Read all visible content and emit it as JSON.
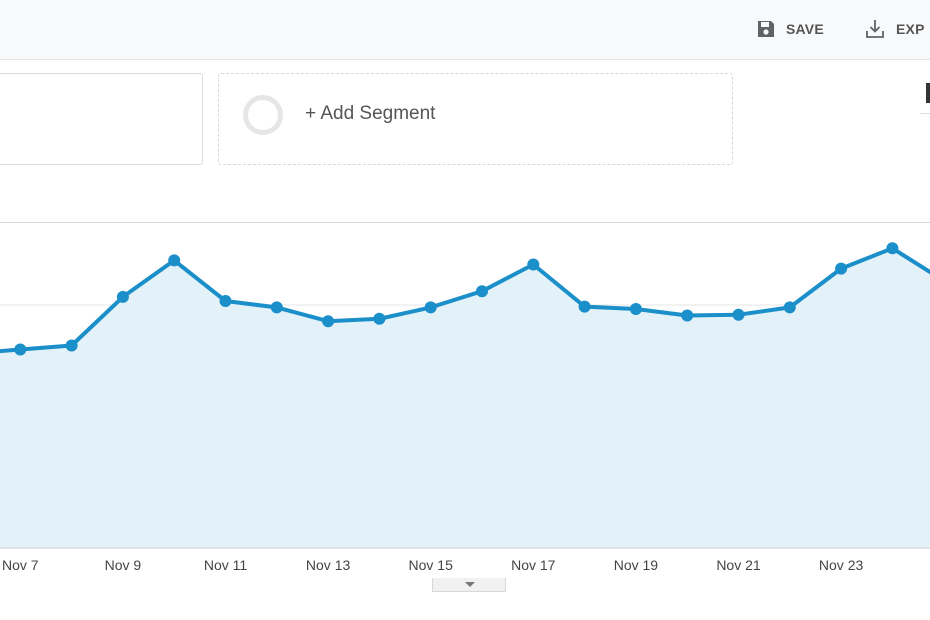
{
  "toolbar": {
    "save_label": "SAVE",
    "export_label": "EXP",
    "save_icon": "floppy-disk-icon",
    "export_icon": "download-icon"
  },
  "segments": {
    "add_label": "+ Add Segment"
  },
  "colors": {
    "line": "#1a8fc9",
    "area": "#e3f1f8",
    "grid": "#e6e6e6"
  },
  "chart_data": {
    "type": "area",
    "x_tick_labels": [
      "Nov 7",
      "Nov 9",
      "Nov 11",
      "Nov 13",
      "Nov 15",
      "Nov 17",
      "Nov 19",
      "Nov 21",
      "Nov 23",
      "N"
    ],
    "values": [
      4.4,
      4.45,
      4.5,
      5.1,
      5.55,
      5.05,
      4.97,
      4.8,
      4.83,
      4.97,
      5.17,
      5.5,
      4.98,
      4.95,
      4.87,
      4.88,
      4.97,
      5.45,
      5.7,
      5.3
    ],
    "ylim": [
      2.0,
      6.0
    ],
    "grid": true
  }
}
